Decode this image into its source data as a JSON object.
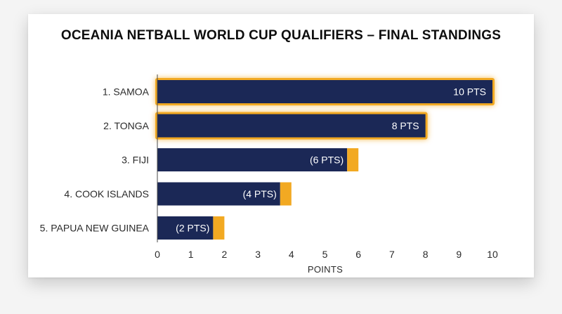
{
  "chart_data": {
    "type": "bar",
    "orientation": "horizontal",
    "title": "OCEANIA NETBALL WORLD CUP QUALIFIERS – FINAL STANDINGS",
    "xlabel": "POINTS",
    "ylabel": "",
    "xlim": [
      0,
      10
    ],
    "xticks": [
      0,
      1,
      2,
      3,
      4,
      5,
      6,
      7,
      8,
      9,
      10
    ],
    "grid": false,
    "categories": [
      "1. SAMOA",
      "2. TONGA",
      "3. FIJI",
      "4. COOK ISLANDS",
      "5. PAPUA NEW GUINEA"
    ],
    "values": [
      10,
      8,
      6,
      4,
      2
    ],
    "bar_labels": [
      "10 PTS",
      "8 PTS",
      "(6 PTS)",
      "(4 PTS)",
      "(2 PTS)"
    ],
    "highlighted": [
      true,
      true,
      false,
      false,
      false
    ],
    "colors": {
      "bar": "#1b2856",
      "accent": "#f2a922"
    }
  }
}
